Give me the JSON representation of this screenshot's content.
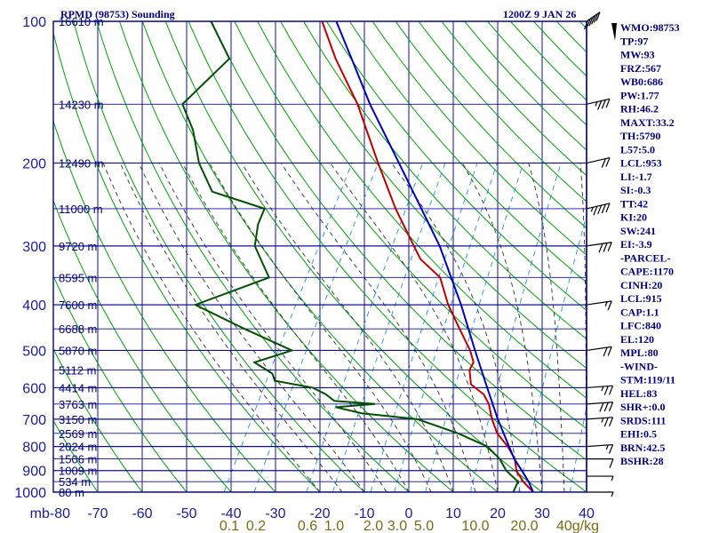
{
  "header": {
    "title": "RPMD (98753) Sounding",
    "time": "1200Z  9 JAN 26"
  },
  "colors": {
    "isobar": "#1010a0",
    "isotherm": "#1010a0",
    "dry_adiabat": "#00a000",
    "moist_adiabat": "#303030",
    "mixing_ratio": "#2090d0",
    "temperature": "#c00000",
    "dewpoint": "#005000",
    "parcel": "#0000c0",
    "text": "#000080",
    "mr_label": "#7a6a10"
  },
  "pressure_labels": [
    "100",
    "200",
    "300",
    "400",
    "500",
    "600",
    "700",
    "800",
    "900",
    "1000"
  ],
  "temperature_labels": [
    "mb-80",
    "-70",
    "-60",
    "-50",
    "-40",
    "-30",
    "-20",
    "-10",
    "0",
    "10",
    "20",
    "30",
    "40"
  ],
  "mixing_ratio_labels": [
    "0.1",
    "0.2",
    "0.6",
    "1.0",
    "2.0",
    "3.0",
    "5.0",
    "10.0",
    "20.0",
    "40g/kg"
  ],
  "height_labels": [
    "16610 m",
    "14230 m",
    "12490 m",
    "11000 m",
    "9720 m",
    "8595 m",
    "7600 m",
    "6688 m",
    "5870 m",
    "5112 m",
    "4414 m",
    "3763 m",
    "3150 m",
    "2569 m",
    "2024 m",
    "1506 m",
    "1009 m",
    "534 m",
    "80 m"
  ],
  "indices": [
    "WMO:98753",
    "TP:97",
    "MW:93",
    "FRZ:567",
    "WB0:686",
    "PW:1.77",
    "RH:46.2",
    "MAXT:33.2",
    "TH:5790",
    "L57:5.0",
    "LCL:953",
    "LI:-1.7",
    "SI:-0.3",
    "TT:42",
    "KI:20",
    "SW:241",
    "EI:-3.9",
    "-PARCEL-",
    "CAPE:1170",
    "CINH:20",
    "LCL:915",
    "CAP:1.1",
    "LFC:840",
    "EL:120",
    "MPL:80",
    "-WIND-",
    "STM:119/11",
    "HEL:83",
    "SHR+:0.0",
    "SRDS:111",
    "EHI:0.5",
    "BRN:42.5",
    "BSHR:28"
  ],
  "chart_data": {
    "type": "line",
    "title": "RPMD (98753) Sounding",
    "valid_time": "1200Z  9 JAN 26",
    "y_axis": {
      "quantity": "pressure",
      "unit": "mb",
      "range": [
        1000,
        100
      ],
      "scale": "log",
      "ticks": [
        100,
        200,
        300,
        400,
        500,
        600,
        700,
        800,
        900,
        1000
      ]
    },
    "x_axis": {
      "quantity": "temperature",
      "unit": "°C",
      "range": [
        -80,
        40
      ],
      "ticks": [
        -80,
        -70,
        -60,
        -50,
        -40,
        -30,
        -20,
        -10,
        0,
        10,
        20,
        30,
        40
      ],
      "skew": "skew-T"
    },
    "mixing_ratio_lines_gkg": [
      0.1,
      0.2,
      0.6,
      1.0,
      2.0,
      3.0,
      5.0,
      10.0,
      20.0,
      40.0
    ],
    "series": [
      {
        "name": "temperature",
        "points": [
          [
            1000,
            28
          ],
          [
            950,
            24.4
          ],
          [
            925,
            22.9
          ],
          [
            900,
            21.4
          ],
          [
            850,
            19.5
          ],
          [
            800,
            16.3
          ],
          [
            750,
            12.2
          ],
          [
            700,
            9.2
          ],
          [
            650,
            6.5
          ],
          [
            620,
            4.1
          ],
          [
            590,
            -0.1
          ],
          [
            550,
            -2.3
          ],
          [
            530,
            -2.4
          ],
          [
            500,
            -4.7
          ],
          [
            450,
            -9.9
          ],
          [
            400,
            -15.6
          ],
          [
            350,
            -21
          ],
          [
            320,
            -27.8
          ],
          [
            300,
            -31
          ],
          [
            250,
            -40
          ],
          [
            200,
            -49.9
          ],
          [
            150,
            -62.2
          ],
          [
            120,
            -73.1
          ],
          [
            100,
            -81
          ]
        ]
      },
      {
        "name": "dewpoint",
        "points": [
          [
            1000,
            23.5
          ],
          [
            950,
            23.2
          ],
          [
            900,
            19.1
          ],
          [
            850,
            16.1
          ],
          [
            800,
            11.7
          ],
          [
            750,
            3.4
          ],
          [
            700,
            -7.6
          ],
          [
            680,
            -20.9
          ],
          [
            660,
            -27.5
          ],
          [
            650,
            -19.1
          ],
          [
            640,
            -28.7
          ],
          [
            620,
            -31.4
          ],
          [
            600,
            -35.3
          ],
          [
            580,
            -44.7
          ],
          [
            560,
            -46.2
          ],
          [
            530,
            -51.7
          ],
          [
            500,
            -44.8
          ],
          [
            450,
            -58.3
          ],
          [
            400,
            -72.5
          ],
          [
            350,
            -59.5
          ],
          [
            300,
            -66.8
          ],
          [
            270,
            -68.9
          ],
          [
            250,
            -69.5
          ],
          [
            230,
            -83.5
          ],
          [
            200,
            -90.2
          ],
          [
            170,
            -95.9
          ],
          [
            150,
            -101.6
          ],
          [
            120,
            -97
          ],
          [
            100,
            -106
          ]
        ]
      },
      {
        "name": "parcel",
        "points": [
          [
            1000,
            28
          ],
          [
            950,
            25.6
          ],
          [
            900,
            22.6
          ],
          [
            850,
            19.4
          ],
          [
            800,
            16.6
          ],
          [
            700,
            10.5
          ],
          [
            600,
            4
          ],
          [
            500,
            -3.6
          ],
          [
            400,
            -12.7
          ],
          [
            300,
            -25.2
          ],
          [
            250,
            -34.2
          ],
          [
            200,
            -45.2
          ],
          [
            150,
            -59.4
          ],
          [
            120,
            -69.5
          ],
          [
            100,
            -77.8
          ]
        ]
      }
    ],
    "wind_barbs": [
      {
        "p": 1000,
        "dir": 90,
        "kt": 5
      },
      {
        "p": 925,
        "dir": 90,
        "kt": 5
      },
      {
        "p": 850,
        "dir": 90,
        "kt": 10
      },
      {
        "p": 800,
        "dir": 80,
        "kt": 15
      },
      {
        "p": 700,
        "dir": 80,
        "kt": 25
      },
      {
        "p": 650,
        "dir": 80,
        "kt": 30
      },
      {
        "p": 600,
        "dir": 80,
        "kt": 25
      },
      {
        "p": 500,
        "dir": 70,
        "kt": 20
      },
      {
        "p": 400,
        "dir": 70,
        "kt": 15
      },
      {
        "p": 300,
        "dir": 70,
        "kt": 30
      },
      {
        "p": 250,
        "dir": 60,
        "kt": 45
      },
      {
        "p": 200,
        "dir": 60,
        "kt": 20
      },
      {
        "p": 150,
        "dir": 60,
        "kt": 35
      },
      {
        "p": 100,
        "dir": 30,
        "kt": 60
      }
    ]
  }
}
